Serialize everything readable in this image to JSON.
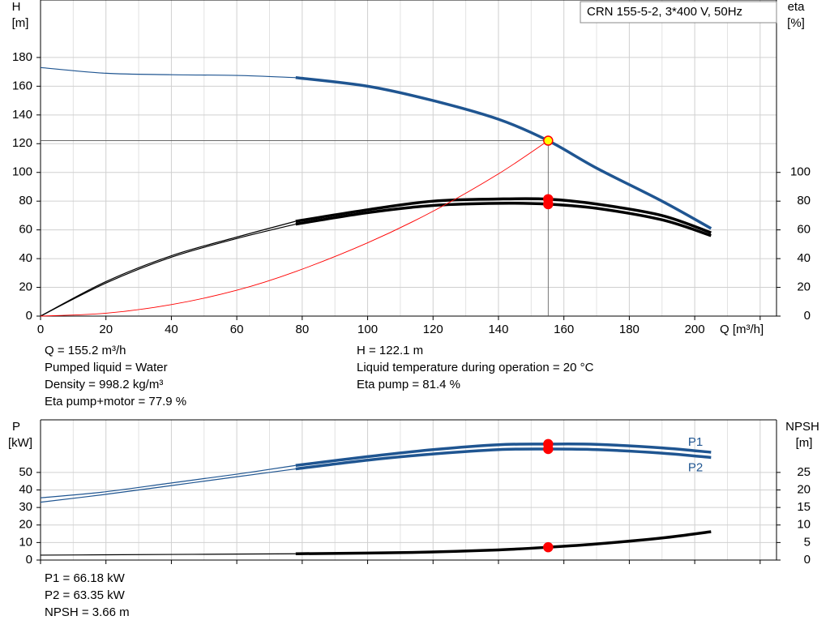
{
  "chart_data": [
    {
      "type": "line",
      "legend_title": "CRN 155-5-2, 3*400 V, 50Hz",
      "y_label": [
        "H",
        "[m]"
      ],
      "y2_label": [
        "eta",
        "[%]"
      ],
      "x_label": "Q [m³/h]",
      "x": [
        0,
        20,
        40,
        60,
        78,
        100,
        120,
        140,
        155.2,
        170,
        190,
        205
      ],
      "xlim": [
        0,
        225
      ],
      "xticks": [
        0,
        20,
        40,
        60,
        80,
        100,
        120,
        140,
        160,
        180,
        200
      ],
      "ylim": [
        0,
        220
      ],
      "yticks": [
        0,
        20,
        40,
        60,
        80,
        100,
        120,
        140,
        160,
        180
      ],
      "y2lim": [
        0,
        220
      ],
      "y2ticks": [
        0,
        20,
        40,
        60,
        80,
        100
      ],
      "grid": true,
      "duty_x": 155.2,
      "series": [
        {
          "color": "#1f5591",
          "operating_range": [
            78,
            205
          ],
          "marker_color": "#ffff00",
          "guide": true,
          "values": [
            173,
            169,
            168,
            167.5,
            166,
            160,
            150,
            137,
            122.1,
            103,
            80,
            61
          ]
        },
        {
          "color": "#000000",
          "axis": "y2",
          "operating_range": [
            78,
            205
          ],
          "marker_color": "#ff0000",
          "values": [
            0,
            24,
            42,
            55,
            66,
            74,
            80,
            81.5,
            81.4,
            78,
            70,
            58
          ]
        },
        {
          "color": "#000000",
          "axis": "y2",
          "operating_range": [
            78,
            205
          ],
          "marker_color": "#ff0000",
          "values": [
            0,
            23,
            41,
            54,
            64,
            72,
            77,
            78.5,
            77.9,
            75,
            67,
            56
          ]
        },
        {
          "color": "#ff0000",
          "values": [
            0,
            2,
            8,
            18,
            31,
            51,
            73,
            99,
            122.1,
            null,
            null,
            null
          ]
        }
      ]
    },
    {
      "type": "line",
      "y_label": [
        "P",
        "[kW]"
      ],
      "y2_label": [
        "NPSH",
        "[m]"
      ],
      "x": [
        0,
        20,
        40,
        60,
        78,
        100,
        120,
        140,
        155.2,
        170,
        190,
        205
      ],
      "xlim": [
        0,
        225
      ],
      "xticks": [
        0,
        20,
        40,
        60,
        80,
        100,
        120,
        140,
        160,
        180,
        200
      ],
      "ylim": [
        0,
        80
      ],
      "yticks": [
        0,
        10,
        20,
        30,
        40,
        50
      ],
      "y2lim": [
        0,
        40
      ],
      "y2ticks": [
        0,
        5,
        10,
        15,
        20,
        25
      ],
      "grid": true,
      "duty_x": 155.2,
      "series": [
        {
          "name": "P1",
          "color": "#1f5591",
          "operating_range": [
            78,
            205
          ],
          "marker_color": "#ff0000",
          "label_side": "above",
          "values": [
            35.5,
            39,
            44,
            49,
            54,
            59,
            63,
            65.8,
            66.18,
            66,
            64,
            61.5
          ]
        },
        {
          "name": "P2",
          "color": "#1f5591",
          "operating_range": [
            78,
            205
          ],
          "marker_color": "#ff0000",
          "label_side": "below",
          "values": [
            33,
            37.5,
            42.5,
            47.5,
            52,
            57,
            60.5,
            63,
            63.35,
            63,
            61,
            58.5
          ]
        },
        {
          "color": "#000000",
          "axis": "y2",
          "operating_range": [
            78,
            205
          ],
          "marker_color": "#ff0000",
          "values": [
            1.4,
            1.5,
            1.6,
            1.7,
            1.8,
            2.0,
            2.3,
            2.9,
            3.66,
            4.6,
            6.3,
            8.1
          ]
        }
      ]
    }
  ],
  "info_top": {
    "left": [
      "Q = 155.2 m³/h",
      "Pumped liquid = Water",
      "Density = 998.2 kg/m³",
      "Eta pump+motor = 77.9 %"
    ],
    "right": [
      "H = 122.1 m",
      "Liquid temperature during operation = 20 °C",
      "Eta pump = 81.4 %"
    ]
  },
  "info_bottom": [
    "P1 = 66.18 kW",
    "P2 = 63.35 kW",
    "NPSH = 3.66 m"
  ]
}
